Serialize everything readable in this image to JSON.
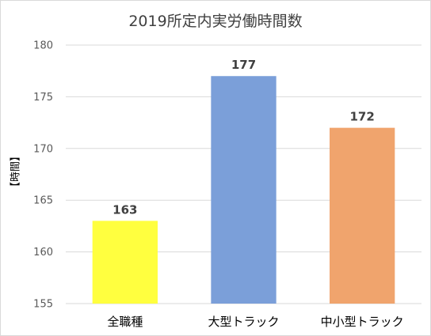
{
  "chart_data": {
    "type": "bar",
    "title": "2019所定内実労働時間数",
    "ylabel": "【時間】",
    "xlabel": "",
    "categories": [
      "全職種",
      "大型トラック",
      "中小型トラック"
    ],
    "values": [
      163,
      177,
      172
    ],
    "colors": [
      "#ffff3f",
      "#7b9fd9",
      "#f0a46d"
    ],
    "ylim": [
      155,
      180
    ],
    "yticks": [
      155,
      160,
      165,
      170,
      175,
      180
    ],
    "grid": true,
    "legend": "none",
    "data_labels": true
  }
}
